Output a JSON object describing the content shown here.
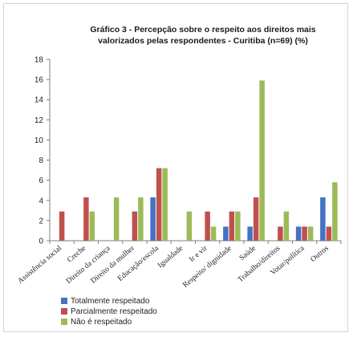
{
  "chart_data": {
    "type": "bar",
    "title_lines": [
      "Gráfico 3 - Percepção sobre o respeito aos direitos mais",
      "valorizados pelas respondentes - Curitiba (n=69) (%)"
    ],
    "xlabel": "",
    "ylabel": "",
    "ylim": [
      0,
      18
    ],
    "yticks": [
      0,
      2,
      4,
      6,
      8,
      10,
      12,
      14,
      16,
      18
    ],
    "grid": false,
    "legend_position": "bottom-left",
    "categories": [
      "Assistência social",
      "Creche",
      "Direito da criança",
      "Direito da mulher",
      "Educação/escola",
      "Igualdade",
      "Ir e vir",
      "Respeito/ dignidade",
      "Saúde",
      "Trabalho/direitos",
      "Votar/política",
      "Outros"
    ],
    "series": [
      {
        "name": "Totalmente respeitado",
        "color": "#4472c4",
        "values": [
          0,
          0,
          0,
          0,
          4.3,
          0,
          0,
          1.4,
          1.4,
          0,
          1.4,
          4.3
        ]
      },
      {
        "name": "Parcialmente respeitado",
        "color": "#c0504d",
        "values": [
          2.9,
          4.3,
          0,
          2.9,
          7.2,
          0,
          2.9,
          2.9,
          4.3,
          1.4,
          1.4,
          1.4
        ]
      },
      {
        "name": "Não é respeitado",
        "color": "#9bbb59",
        "values": [
          0,
          2.9,
          4.3,
          4.3,
          7.2,
          2.9,
          1.4,
          2.9,
          15.9,
          2.9,
          1.4,
          5.8
        ]
      }
    ]
  }
}
